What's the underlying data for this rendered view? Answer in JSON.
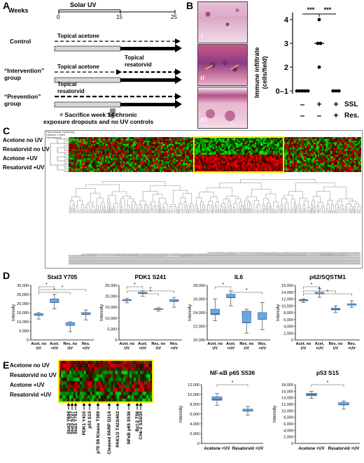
{
  "panel_letters": [
    "A",
    "B",
    "C",
    "D",
    "E"
  ],
  "panelA": {
    "solar_uv": "Solar UV",
    "weeks_label": "Weeks",
    "ticks": [
      "0",
      "15",
      "25"
    ],
    "groups": [
      {
        "name": "Control",
        "line1": "Topical acetone",
        "line2": ""
      },
      {
        "name": "“Intervention”\ngroup",
        "line1": "Topical acetone",
        "line2": "Topical\nresatorvid"
      },
      {
        "name": "“Prevention”\ngroup",
        "line1": "Topical\nresatorvid",
        "line2": ""
      }
    ],
    "sacrifice_text": "= Sacrifice week 14 chronic\nexposure dropouts and no UV controls"
  },
  "panelB": {
    "micro_labels": [
      "I",
      "II",
      "III"
    ],
    "ylabel": "Immune infiltrate\n(cells/field)",
    "yticks": [
      "0–1",
      "2",
      "3",
      "4"
    ],
    "row_labels": [
      "SSL",
      "Res."
    ],
    "ssl_signs": [
      "–",
      "+",
      "+"
    ],
    "res_signs": [
      "–",
      "–",
      "+"
    ],
    "sig": [
      "***",
      "***"
    ],
    "points": [
      {
        "group": 0,
        "values": [
          0,
          0,
          0,
          0,
          0
        ]
      },
      {
        "group": 1,
        "values": [
          4,
          3,
          3,
          2
        ]
      },
      {
        "group": 2,
        "values": [
          0,
          0,
          0
        ]
      }
    ]
  },
  "panelC": {
    "header_lines": [
      "Hierarchical Clustering",
      "Dataset 1 Data",
      "Dendrogram"
    ],
    "rows": [
      "Acetone no UV",
      "Resatorvid no UV",
      "Acetone +UV",
      "Resatorvid +UV"
    ]
  },
  "panelD": {
    "ylabel": "Intensity",
    "charts": [
      {
        "title": "Stat3 Y705",
        "ymin": 0,
        "ymax": 30000,
        "ystep": 5000,
        "yticks": [
          "0",
          "5,000",
          "10,000",
          "15,000",
          "20,000",
          "25,000",
          "30,000"
        ],
        "categories": [
          "Acet. no\nUV",
          "Acet.\n+UV",
          "Res. no\nUV",
          "Res.\n+UV"
        ],
        "boxes": [
          [
            11500,
            12500,
            13500,
            14500,
            15000
          ],
          [
            17000,
            19000,
            20500,
            22500,
            25000
          ],
          [
            4500,
            6500,
            8000,
            9500,
            10000
          ],
          [
            11000,
            13000,
            14000,
            15000,
            16500
          ]
        ]
      },
      {
        "title": "PDK1 S241",
        "ymin": 0,
        "ymax": 25000,
        "ystep": 5000,
        "yticks": [
          "0",
          "5,000",
          "10,000",
          "15,000",
          "20,000",
          "25,000"
        ],
        "categories": [
          "Acet. no\nUV",
          "Acet.\n+UV",
          "Res. no\nUV",
          "Res.\n+UV"
        ],
        "boxes": [
          [
            17000,
            17500,
            18000,
            18500,
            19000
          ],
          [
            20000,
            20800,
            21300,
            21800,
            22500
          ],
          [
            13200,
            13700,
            14000,
            14300,
            14800
          ],
          [
            15000,
            16800,
            17700,
            18500,
            19500
          ]
        ]
      },
      {
        "title": "IL6",
        "ymin": 20000,
        "ymax": 28000,
        "ystep": 2000,
        "yticks": [
          "20,000",
          "22,000",
          "24,000",
          "26,000",
          "28,000"
        ],
        "categories": [
          "Acet. no\nUV",
          "Acet.\n+UV",
          "Res. no\nUV",
          "Res.\n+UV"
        ],
        "boxes": [
          [
            22800,
            23000,
            23800,
            24500,
            26000
          ],
          [
            25000,
            25700,
            26200,
            26700,
            27200
          ],
          [
            21000,
            21700,
            22500,
            24200,
            24500
          ],
          [
            21500,
            22300,
            23000,
            24000,
            25500
          ]
        ]
      },
      {
        "title": "p62/SQSTM1",
        "ymin": 0,
        "ymax": 16000,
        "ystep": 2000,
        "yticks": [
          "0",
          "2,000",
          "4,000",
          "6,000",
          "8,000",
          "10,000",
          "12,000",
          "14,000",
          "16,000"
        ],
        "categories": [
          "Acet. no\nUV",
          "Acet.\n+UV",
          "Res. no\nUV",
          "Res.\n+UV"
        ],
        "boxes": [
          [
            11000,
            11200,
            11500,
            11800,
            12000
          ],
          [
            12500,
            13000,
            13500,
            14000,
            15000
          ],
          [
            8000,
            8500,
            9000,
            9300,
            10000
          ],
          [
            9500,
            9800,
            10200,
            10600,
            11500
          ]
        ]
      }
    ]
  },
  "panelE": {
    "rows": [
      "Acetone no UV",
      "Resatorvid no UV",
      "Acetone +UV",
      "Resatorvid +UV"
    ],
    "proteins": [
      "Stat3 Y694",
      "Stat3 S727",
      "Stat1 Y701",
      "PDK1 Y410",
      "p53 S15",
      "p70 S6 Kinase T389",
      "Cleaved PARP D214",
      "PAK1/2 T423/402",
      "NFκB p65 S536",
      "Bcl-2 T56",
      "Chk-2 S33/35"
    ],
    "ylabel": "Intensity",
    "charts": [
      {
        "title": "NF-κB p65 S536",
        "ymin": 0,
        "ymax": 12000,
        "ystep": 2000,
        "yticks": [
          "0",
          "2,000",
          "4,000",
          "6,000",
          "8,000",
          "10,000",
          "12,000"
        ],
        "categories": [
          "Acetone +UV",
          "Resatorvid +UV"
        ],
        "boxes": [
          [
            7800,
            8300,
            9000,
            9500,
            10200
          ],
          [
            5800,
            6200,
            6600,
            7000,
            7500
          ]
        ]
      },
      {
        "title": "p53 S15",
        "ymin": 0,
        "ymax": 18000,
        "ystep": 2000,
        "yticks": [
          "0",
          "2,000",
          "4,000",
          "6,000",
          "8,000",
          "10,000",
          "12,000",
          "14,000",
          "16,000",
          "18,000"
        ],
        "categories": [
          "Acetone +UV",
          "Resatorvid +UV"
        ],
        "boxes": [
          [
            13800,
            14300,
            15000,
            15300,
            16000
          ],
          [
            10500,
            11200,
            11800,
            12500,
            13000
          ]
        ]
      }
    ]
  }
}
